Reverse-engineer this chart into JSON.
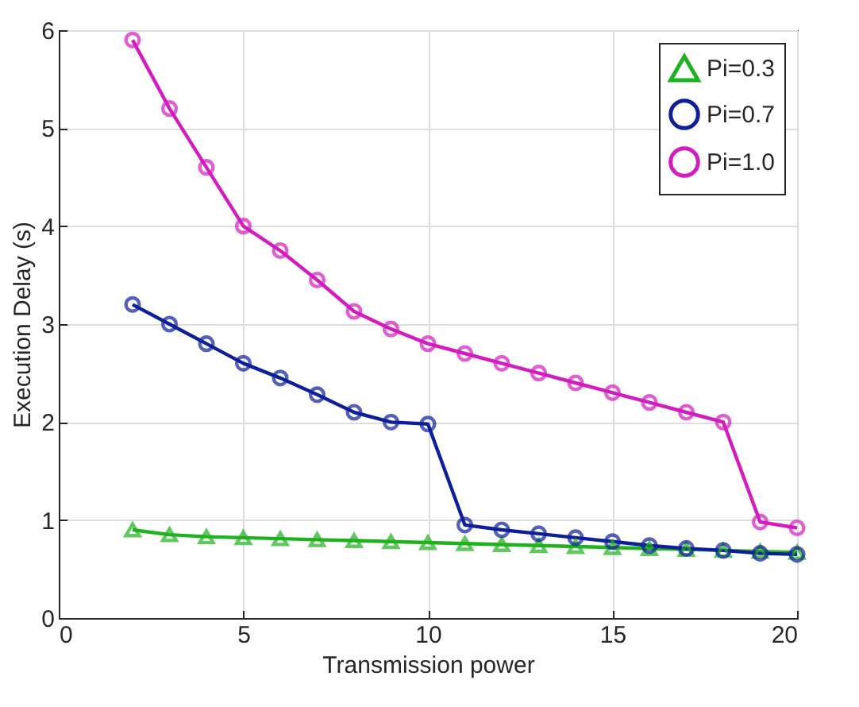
{
  "chart_data": {
    "type": "line",
    "xlabel": "Transmission power",
    "ylabel": "Execution Delay (s)",
    "x": [
      2,
      3,
      4,
      5,
      6,
      7,
      8,
      9,
      10,
      11,
      12,
      13,
      14,
      15,
      16,
      17,
      18,
      19,
      20
    ],
    "series": [
      {
        "name": "Pi=0.3",
        "color": "#1fb21f",
        "marker": "triangle",
        "values": [
          0.9,
          0.85,
          0.83,
          0.82,
          0.81,
          0.8,
          0.79,
          0.78,
          0.77,
          0.76,
          0.75,
          0.74,
          0.73,
          0.72,
          0.71,
          0.7,
          0.69,
          0.68,
          0.67
        ]
      },
      {
        "name": "Pi=0.7",
        "color": "#0d1f99",
        "marker": "circle",
        "values": [
          3.2,
          3.0,
          2.8,
          2.6,
          2.45,
          2.28,
          2.1,
          2.0,
          1.98,
          0.95,
          0.9,
          0.86,
          0.82,
          0.78,
          0.74,
          0.71,
          0.69,
          0.66,
          0.65
        ]
      },
      {
        "name": "Pi=1.0",
        "color": "#d21cc0",
        "marker": "circle",
        "values": [
          5.9,
          5.2,
          4.6,
          4.0,
          3.75,
          3.45,
          3.13,
          2.95,
          2.8,
          2.7,
          2.6,
          2.5,
          2.4,
          2.3,
          2.2,
          2.1,
          2.0,
          0.98,
          0.92
        ]
      }
    ],
    "xlim": [
      0,
      20
    ],
    "ylim": [
      0,
      6
    ],
    "xticks": [
      0,
      5,
      10,
      15,
      20
    ],
    "yticks": [
      0,
      1,
      2,
      3,
      4,
      5,
      6
    ],
    "grid": true,
    "legend": "top right",
    "line_style": "solid"
  }
}
